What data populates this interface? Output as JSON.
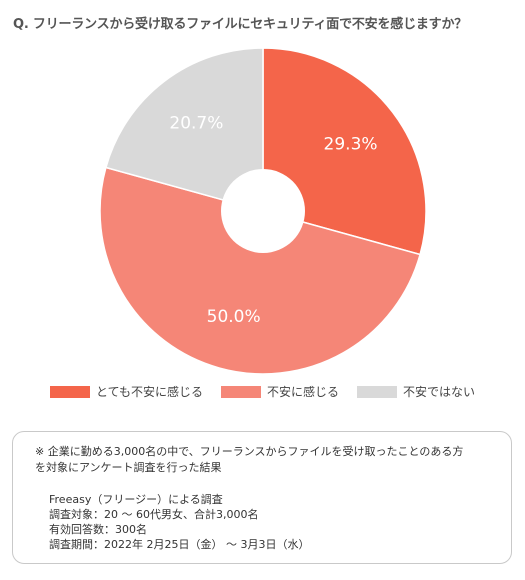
{
  "question": "Q. フリーランスから受け取るファイルにセキュリティ面で不安を感じますか？",
  "chart_data": {
    "type": "pie",
    "donut": true,
    "slices": [
      {
        "label": "とても不安に感じる",
        "value": 29.3,
        "display": "29.3%",
        "color": "#F4654A"
      },
      {
        "label": "不安に感じる",
        "value": 50.0,
        "display": "50.0%",
        "color": "#F58677"
      },
      {
        "label": "不安ではない",
        "value": 20.7,
        "display": "20.7%",
        "color": "#D9D9D9"
      }
    ],
    "start_angle_deg": 0,
    "direction": "clockwise",
    "legend_position": "bottom"
  },
  "note": {
    "line1": "※ 企業に勤める3,000名の中で、フリーランスからファイルを受け取ったことのある方",
    "line2": "を対象にアンケート調査を行った結果",
    "survey": [
      "Freeasy（フリージー）による調査",
      "調査対象：20 〜 60代男女、合計3,000名",
      "有効回答数：300名",
      "調査期間：2022年 2月25日（金） 〜 3月3日（水）"
    ]
  }
}
